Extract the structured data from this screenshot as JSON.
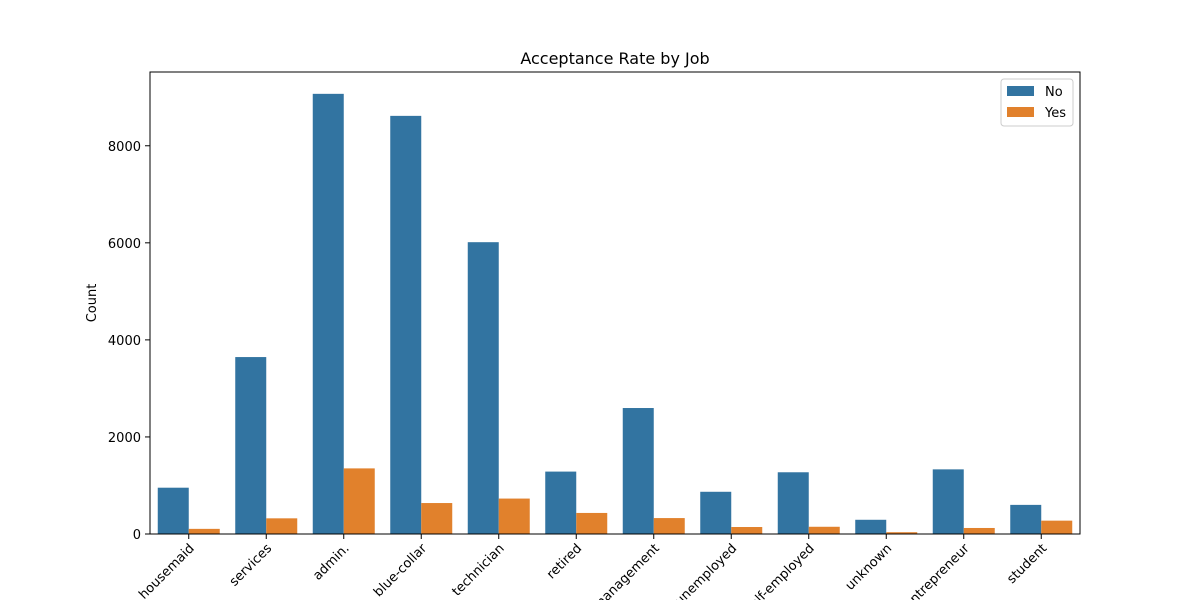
{
  "chart_data": {
    "type": "bar",
    "title": "Acceptance Rate by Job",
    "xlabel": "",
    "ylabel": "Count",
    "ylim": [
      0,
      9520
    ],
    "yticks": [
      0,
      2000,
      4000,
      6000,
      8000
    ],
    "legend_position": "top-right",
    "categories": [
      "housemaid",
      "services",
      "admin.",
      "blue-collar",
      "technician",
      "retired",
      "management",
      "unemployed",
      "self-employed",
      "unknown",
      "entrepreneur",
      "student"
    ],
    "series": [
      {
        "name": "No",
        "color": "#3274a1",
        "values": [
          954,
          3646,
          9070,
          8616,
          6013,
          1286,
          2596,
          870,
          1272,
          293,
          1332,
          600
        ]
      },
      {
        "name": "Yes",
        "color": "#e1812c",
        "values": [
          106,
          323,
          1352,
          638,
          730,
          434,
          328,
          144,
          149,
          37,
          124,
          275
        ]
      }
    ]
  }
}
